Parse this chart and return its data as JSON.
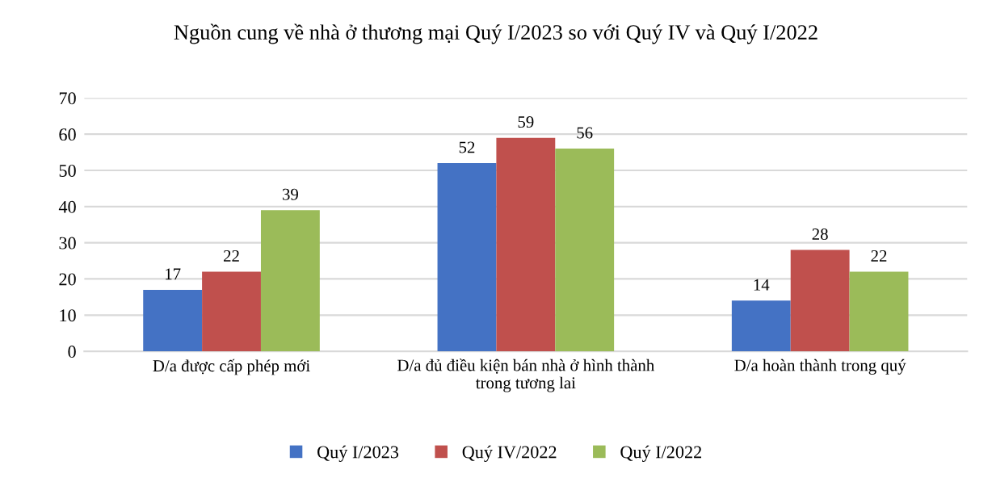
{
  "chart_data": {
    "type": "bar",
    "title": "Nguồn cung về nhà ở thương mại Quý I/2023 so với Quý IV và Quý I/2022",
    "categories": [
      "D/a được cấp phép mới",
      "D/a đủ điều kiện bán nhà ở hình thành trong tương lai",
      "D/a hoàn thành trong quý"
    ],
    "series": [
      {
        "name": "Quý I/2023",
        "color": "#4472c4",
        "values": [
          17,
          52,
          14
        ]
      },
      {
        "name": "Quý IV/2022",
        "color": "#c0504d",
        "values": [
          22,
          59,
          28
        ]
      },
      {
        "name": "Quý I/2022",
        "color": "#9bbb59",
        "values": [
          39,
          56,
          22
        ]
      }
    ],
    "ylim": [
      0,
      70
    ],
    "yticks": [
      0,
      10,
      20,
      30,
      40,
      50,
      60,
      70
    ],
    "grid": "y",
    "legend": "bottom",
    "data_labels": true
  }
}
